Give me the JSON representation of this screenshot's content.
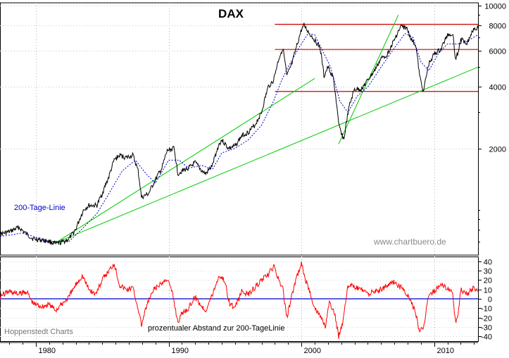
{
  "chart_data": [
    {
      "type": "line",
      "title": "DAX",
      "y_scale": "log",
      "ylim": [
        600,
        10000
      ],
      "y_ticks": [
        {
          "value": 10000,
          "label": "10000"
        },
        {
          "value": 8000,
          "label": "8000"
        },
        {
          "value": 6000,
          "label": "6000"
        },
        {
          "value": 4000,
          "label": "4000"
        },
        {
          "value": 2000,
          "label": "2000"
        }
      ],
      "xlim": [
        1977.3,
        2013.3
      ],
      "x_ticks": [
        {
          "value": 1980,
          "label": "1980"
        },
        {
          "value": 1990,
          "label": "1990"
        },
        {
          "value": 2000,
          "label": "2000"
        },
        {
          "value": 2010,
          "label": "2010"
        }
      ],
      "grid": true,
      "series": [
        {
          "color": "#000000",
          "style": "solid",
          "x": [
            1977.3,
            1978.0,
            1978.7,
            1979.3,
            1979.8,
            1980.5,
            1981.0,
            1981.5,
            1981.9,
            1982.5,
            1983.0,
            1983.6,
            1984.0,
            1984.6,
            1985.0,
            1985.5,
            1985.9,
            1986.3,
            1986.8,
            1987.3,
            1987.7,
            1987.95,
            1988.5,
            1989.0,
            1989.5,
            1989.9,
            1990.4,
            1990.7,
            1991.0,
            1991.5,
            1992.0,
            1992.5,
            1992.8,
            1993.3,
            1993.8,
            1994.0,
            1994.5,
            1995.0,
            1995.5,
            1996.0,
            1996.5,
            1997.0,
            1997.5,
            1997.9,
            1998.3,
            1998.6,
            1998.9,
            1999.3,
            1999.7,
            2000.0,
            2000.2,
            2000.6,
            2001.0,
            2001.4,
            2001.7,
            2002.0,
            2002.4,
            2002.8,
            2003.2,
            2003.6,
            2004.0,
            2004.5,
            2005.0,
            2005.5,
            2006.0,
            2006.5,
            2007.0,
            2007.5,
            2007.9,
            2008.3,
            2008.6,
            2008.9,
            2009.2,
            2009.6,
            2010.0,
            2010.5,
            2011.0,
            2011.4,
            2011.6,
            2011.8,
            2012.0,
            2012.5,
            2013.0,
            2013.3
          ],
          "y": [
            760,
            780,
            820,
            760,
            720,
            710,
            700,
            680,
            690,
            720,
            800,
            1000,
            1050,
            1050,
            1200,
            1450,
            1750,
            1850,
            1800,
            1850,
            1550,
            1150,
            1200,
            1400,
            1600,
            1950,
            2000,
            1500,
            1550,
            1600,
            1700,
            1550,
            1500,
            1650,
            2100,
            2200,
            2000,
            2050,
            2300,
            2400,
            2600,
            3000,
            4000,
            4300,
            5500,
            6200,
            4500,
            5200,
            6500,
            7600,
            8000,
            7300,
            6800,
            6200,
            4500,
            5000,
            4400,
            2600,
            2200,
            3200,
            3900,
            3900,
            4300,
            4800,
            5500,
            5800,
            6800,
            7900,
            7800,
            6800,
            6400,
            4500,
            3800,
            5200,
            5800,
            6100,
            7200,
            7300,
            5500,
            5900,
            6800,
            6600,
            7800,
            7800
          ]
        },
        {
          "name": "200-Tage-Linie",
          "color": "#0000cc",
          "style": "dotted",
          "x": [
            1977.3,
            1979.0,
            1981.0,
            1982.5,
            1983.6,
            1984.6,
            1985.5,
            1986.5,
            1987.5,
            1988.3,
            1989.0,
            1990.0,
            1990.8,
            1991.5,
            1992.5,
            1993.3,
            1994.0,
            1995.0,
            1996.0,
            1997.0,
            1997.9,
            1998.5,
            1999.0,
            1999.8,
            2000.5,
            2001.0,
            2001.6,
            2002.2,
            2002.9,
            2003.5,
            2004.2,
            2005.0,
            2006.0,
            2007.0,
            2007.8,
            2008.4,
            2009.0,
            2009.6,
            2010.3,
            2011.0,
            2011.8,
            2012.5,
            2013.3
          ],
          "y": [
            740,
            770,
            700,
            700,
            820,
            960,
            1200,
            1550,
            1750,
            1500,
            1350,
            1750,
            1750,
            1600,
            1650,
            1580,
            1900,
            2000,
            2200,
            2600,
            3400,
            4300,
            5000,
            6200,
            7300,
            7200,
            6000,
            5000,
            3400,
            3000,
            3600,
            4000,
            5000,
            6200,
            7300,
            7000,
            5300,
            4800,
            5800,
            6500,
            6500,
            6700,
            7200
          ]
        }
      ],
      "trendlines": [
        {
          "color": "#00cc00",
          "x1": 1981.5,
          "y1": 690,
          "x2": 2001.0,
          "y2": 4400
        },
        {
          "color": "#00cc00",
          "x1": 1981.5,
          "y1": 690,
          "x2": 2013.3,
          "y2": 5000
        },
        {
          "color": "#00cc00",
          "x1": 2002.8,
          "y1": 2100,
          "x2": 2007.3,
          "y2": 9000
        }
      ],
      "hlines": [
        {
          "color": "#cc0000",
          "x_from": 1998.0,
          "x_to": 2013.3,
          "y": 8100
        },
        {
          "color": "#cc0000",
          "x_from": 1998.0,
          "x_to": 2013.3,
          "y": 6100
        },
        {
          "color": "#cc0000",
          "x_from": 1998.0,
          "x_to": 2013.3,
          "y": 3800
        }
      ],
      "annotations": {
        "ma_label": "200-Tage-Linie",
        "watermark": "www.chartbuero.de"
      }
    },
    {
      "type": "line",
      "title": "",
      "ylim": [
        -45,
        45
      ],
      "y_ticks": [
        {
          "value": 40,
          "label": "40"
        },
        {
          "value": 30,
          "label": "30"
        },
        {
          "value": 20,
          "label": "20"
        },
        {
          "value": 10,
          "label": "10"
        },
        {
          "value": 0,
          "label": "0"
        },
        {
          "value": -10,
          "label": "-10"
        },
        {
          "value": -20,
          "label": "-20"
        },
        {
          "value": -30,
          "label": "-30"
        },
        {
          "value": -40,
          "label": "-40"
        }
      ],
      "zero_line_color": "#0000cc",
      "grid": true,
      "series": [
        {
          "color": "#ff0000",
          "style": "solid",
          "x": [
            1977.3,
            1978.0,
            1978.7,
            1979.3,
            1979.8,
            1980.5,
            1981.0,
            1981.5,
            1982.0,
            1982.5,
            1983.0,
            1983.5,
            1984.0,
            1984.5,
            1985.0,
            1985.5,
            1985.9,
            1986.3,
            1986.8,
            1987.3,
            1987.7,
            1987.95,
            1988.4,
            1988.9,
            1989.4,
            1989.9,
            1990.3,
            1990.7,
            1991.0,
            1991.5,
            1992.0,
            1992.5,
            1992.8,
            1993.3,
            1993.8,
            1994.2,
            1994.6,
            1995.0,
            1995.5,
            1996.0,
            1996.5,
            1997.0,
            1997.5,
            1997.9,
            1998.3,
            1998.6,
            1998.9,
            1999.3,
            1999.7,
            2000.0,
            2000.3,
            2000.7,
            2001.0,
            2001.5,
            2001.8,
            2002.1,
            2002.5,
            2002.8,
            2003.1,
            2003.5,
            2004.0,
            2004.5,
            2005.0,
            2005.5,
            2006.0,
            2006.5,
            2007.0,
            2007.5,
            2007.9,
            2008.3,
            2008.6,
            2008.9,
            2009.2,
            2009.6,
            2010.0,
            2010.5,
            2011.0,
            2011.4,
            2011.6,
            2011.8,
            2012.0,
            2012.5,
            2013.0,
            2013.3
          ],
          "y": [
            3,
            8,
            5,
            8,
            -5,
            -8,
            -6,
            -12,
            -5,
            2,
            15,
            25,
            10,
            5,
            20,
            30,
            38,
            15,
            10,
            12,
            -10,
            -28,
            -5,
            10,
            15,
            22,
            5,
            -25,
            -15,
            -10,
            2,
            -8,
            -12,
            5,
            25,
            20,
            -5,
            -10,
            8,
            5,
            12,
            20,
            25,
            35,
            20,
            10,
            -20,
            5,
            25,
            38,
            20,
            5,
            -10,
            -20,
            -30,
            -5,
            -15,
            -40,
            -25,
            15,
            12,
            10,
            5,
            8,
            10,
            15,
            18,
            12,
            5,
            -5,
            -15,
            -35,
            -30,
            5,
            8,
            15,
            12,
            5,
            -25,
            -15,
            10,
            5,
            12,
            8
          ]
        }
      ],
      "annotations": {
        "left_note": "Hoppenstedt Charts",
        "series_label": "prozentualer Abstand zur 200-TageLinie"
      }
    }
  ]
}
